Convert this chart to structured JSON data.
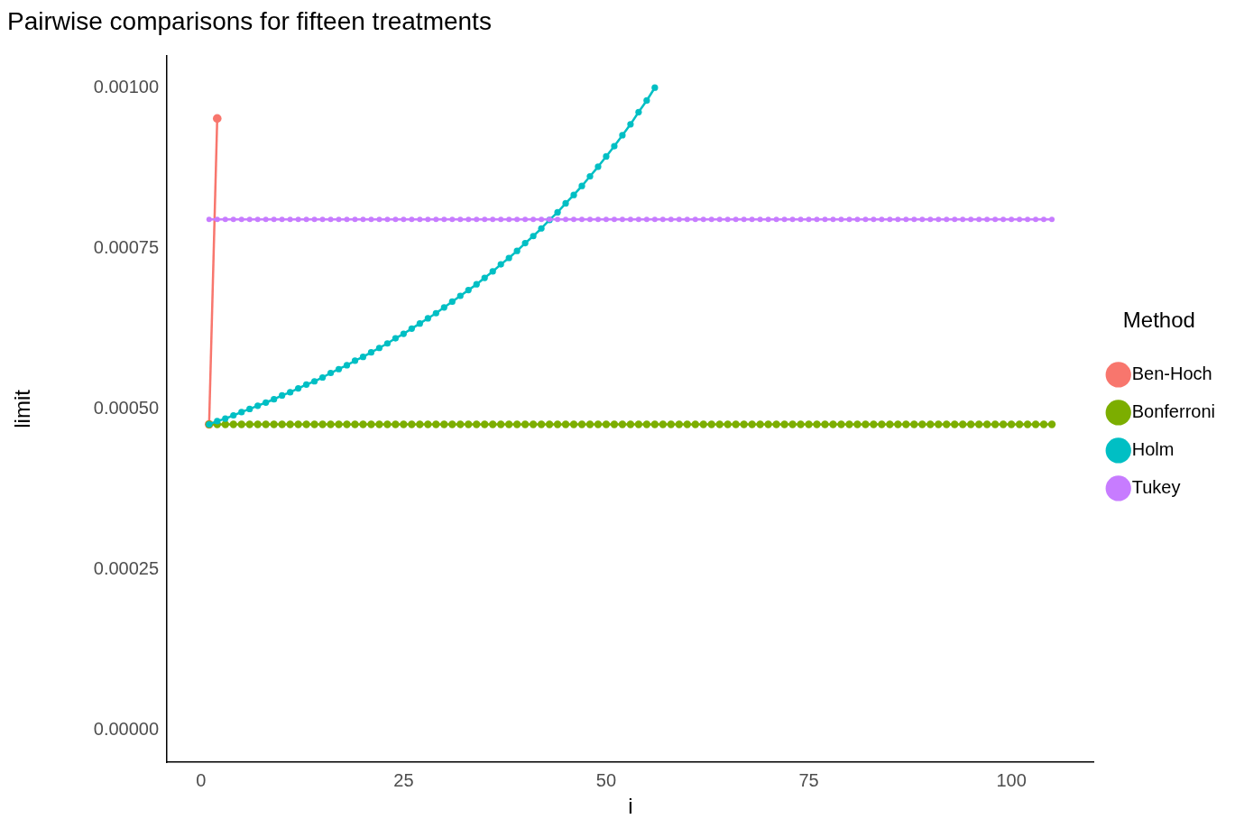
{
  "chart_data": {
    "type": "line",
    "title": "Pairwise comparisons for fifteen treatments",
    "xlabel": "i",
    "ylabel": "limit",
    "legend_title": "Method",
    "legend": "right",
    "grid": false,
    "marker": "circle",
    "line_style": "solid",
    "xlim": [
      -4.2,
      110.2
    ],
    "xticks": [
      0,
      25,
      50,
      75,
      100
    ],
    "ylim": [
      -5e-05,
      0.00105
    ],
    "yticks": [
      {
        "value": 0,
        "label": "0.00000"
      },
      {
        "value": 0.00025,
        "label": "0.00025"
      },
      {
        "value": 0.0005,
        "label": "0.00050"
      },
      {
        "value": 0.00075,
        "label": "0.00075"
      },
      {
        "value": 0.001,
        "label": "0.00100"
      }
    ],
    "x": [
      1,
      2,
      3,
      4,
      5,
      6,
      7,
      8,
      9,
      10,
      11,
      12,
      13,
      14,
      15,
      16,
      17,
      18,
      19,
      20,
      21,
      22,
      23,
      24,
      25,
      26,
      27,
      28,
      29,
      30,
      31,
      32,
      33,
      34,
      35,
      36,
      37,
      38,
      39,
      40,
      41,
      42,
      43,
      44,
      45,
      46,
      47,
      48,
      49,
      50,
      51,
      52,
      53,
      54,
      55,
      56,
      57,
      58,
      59,
      60,
      61,
      62,
      63,
      64,
      65,
      66,
      67,
      68,
      69,
      70,
      71,
      72,
      73,
      74,
      75,
      76,
      77,
      78,
      79,
      80,
      81,
      82,
      83,
      84,
      85,
      86,
      87,
      88,
      89,
      90,
      91,
      92,
      93,
      94,
      95,
      96,
      97,
      98,
      99,
      100,
      101,
      102,
      103,
      104,
      105
    ],
    "series": [
      {
        "name": "Ben-Hoch",
        "color": "#f8766d",
        "x": [
          1,
          2
        ],
        "values": [
          0.000476,
          0.000952
        ]
      },
      {
        "name": "Bonferroni",
        "color": "#7cae00",
        "values": [
          0.000476,
          0.000476,
          0.000476,
          0.000476,
          0.000476,
          0.000476,
          0.000476,
          0.000476,
          0.000476,
          0.000476,
          0.000476,
          0.000476,
          0.000476,
          0.000476,
          0.000476,
          0.000476,
          0.000476,
          0.000476,
          0.000476,
          0.000476,
          0.000476,
          0.000476,
          0.000476,
          0.000476,
          0.000476,
          0.000476,
          0.000476,
          0.000476,
          0.000476,
          0.000476,
          0.000476,
          0.000476,
          0.000476,
          0.000476,
          0.000476,
          0.000476,
          0.000476,
          0.000476,
          0.000476,
          0.000476,
          0.000476,
          0.000476,
          0.000476,
          0.000476,
          0.000476,
          0.000476,
          0.000476,
          0.000476,
          0.000476,
          0.000476,
          0.000476,
          0.000476,
          0.000476,
          0.000476,
          0.000476,
          0.000476,
          0.000476,
          0.000476,
          0.000476,
          0.000476,
          0.000476,
          0.000476,
          0.000476,
          0.000476,
          0.000476,
          0.000476,
          0.000476,
          0.000476,
          0.000476,
          0.000476,
          0.000476,
          0.000476,
          0.000476,
          0.000476,
          0.000476,
          0.000476,
          0.000476,
          0.000476,
          0.000476,
          0.000476,
          0.000476,
          0.000476,
          0.000476,
          0.000476,
          0.000476,
          0.000476,
          0.000476,
          0.000476,
          0.000476,
          0.000476,
          0.000476,
          0.000476,
          0.000476,
          0.000476,
          0.000476,
          0.000476,
          0.000476,
          0.000476,
          0.000476,
          0.000476,
          0.000476,
          0.000476,
          0.000476,
          0.000476,
          0.000476
        ]
      },
      {
        "name": "Holm",
        "color": "#00bfc4",
        "x": [
          1,
          2,
          3,
          4,
          5,
          6,
          7,
          8,
          9,
          10,
          11,
          12,
          13,
          14,
          15,
          16,
          17,
          18,
          19,
          20,
          21,
          22,
          23,
          24,
          25,
          26,
          27,
          28,
          29,
          30,
          31,
          32,
          33,
          34,
          35,
          36,
          37,
          38,
          39,
          40,
          41,
          42,
          43,
          44,
          45,
          46,
          47,
          48,
          49,
          50,
          51,
          52,
          53,
          54,
          55,
          56
        ],
        "values": [
          0.000476,
          0.000481,
          0.000485,
          0.00049,
          0.000495,
          0.0005,
          0.000505,
          0.00051,
          0.000515,
          0.000521,
          0.000526,
          0.000532,
          0.000538,
          0.000543,
          0.000549,
          0.000556,
          0.000562,
          0.000568,
          0.000575,
          0.000581,
          0.000588,
          0.000595,
          0.000602,
          0.00061,
          0.000617,
          0.000625,
          0.000633,
          0.000641,
          0.000649,
          0.000658,
          0.000667,
          0.000676,
          0.000685,
          0.000694,
          0.000704,
          0.000714,
          0.000725,
          0.000735,
          0.000746,
          0.000758,
          0.000769,
          0.000781,
          0.000794,
          0.000806,
          0.00082,
          0.000833,
          0.000847,
          0.000862,
          0.000877,
          0.000893,
          0.000909,
          0.000926,
          0.000943,
          0.000962,
          0.00098,
          0.001
        ]
      },
      {
        "name": "Tukey",
        "color": "#c77cff",
        "values": [
          0.000795,
          0.000795,
          0.000795,
          0.000795,
          0.000795,
          0.000795,
          0.000795,
          0.000795,
          0.000795,
          0.000795,
          0.000795,
          0.000795,
          0.000795,
          0.000795,
          0.000795,
          0.000795,
          0.000795,
          0.000795,
          0.000795,
          0.000795,
          0.000795,
          0.000795,
          0.000795,
          0.000795,
          0.000795,
          0.000795,
          0.000795,
          0.000795,
          0.000795,
          0.000795,
          0.000795,
          0.000795,
          0.000795,
          0.000795,
          0.000795,
          0.000795,
          0.000795,
          0.000795,
          0.000795,
          0.000795,
          0.000795,
          0.000795,
          0.000795,
          0.000795,
          0.000795,
          0.000795,
          0.000795,
          0.000795,
          0.000795,
          0.000795,
          0.000795,
          0.000795,
          0.000795,
          0.000795,
          0.000795,
          0.000795,
          0.000795,
          0.000795,
          0.000795,
          0.000795,
          0.000795,
          0.000795,
          0.000795,
          0.000795,
          0.000795,
          0.000795,
          0.000795,
          0.000795,
          0.000795,
          0.000795,
          0.000795,
          0.000795,
          0.000795,
          0.000795,
          0.000795,
          0.000795,
          0.000795,
          0.000795,
          0.000795,
          0.000795,
          0.000795,
          0.000795,
          0.000795,
          0.000795,
          0.000795,
          0.000795,
          0.000795,
          0.000795,
          0.000795,
          0.000795,
          0.000795,
          0.000795,
          0.000795,
          0.000795,
          0.000795,
          0.000795,
          0.000795,
          0.000795,
          0.000795,
          0.000795,
          0.000795,
          0.000795,
          0.000795,
          0.000795,
          0.000795
        ]
      }
    ]
  }
}
